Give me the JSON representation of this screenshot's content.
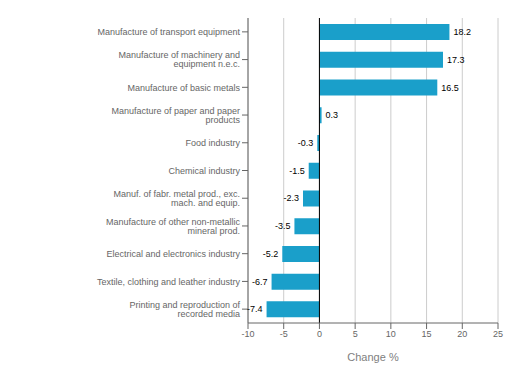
{
  "chart_data": {
    "type": "bar",
    "orientation": "horizontal",
    "categories": [
      "Printing and reproduction of recorded media",
      "Textile, clothing and leather industry",
      "Electrical and electronics industry",
      "Manufacture of other non-metallic mineral prod.",
      "Manuf. of fabr. metal prod., exc. mach. and equip.",
      "Chemical industry",
      "Food industry",
      "Manufacture of paper and paper products",
      "Manufacture of basic metals",
      "Manufacture of machinery and equipment n.e.c.",
      "Manufacture of transport equipment"
    ],
    "values": [
      -7.4,
      -6.7,
      -5.2,
      -3.5,
      -2.3,
      -1.5,
      -0.3,
      0.3,
      16.5,
      17.3,
      18.2
    ],
    "color": "#1a9fca",
    "xlabel": "Change %",
    "xlim": [
      -10,
      25
    ],
    "xticks": [
      -10,
      -5,
      0,
      5,
      10,
      15,
      20,
      25
    ],
    "grid": true,
    "data_labels": true
  }
}
